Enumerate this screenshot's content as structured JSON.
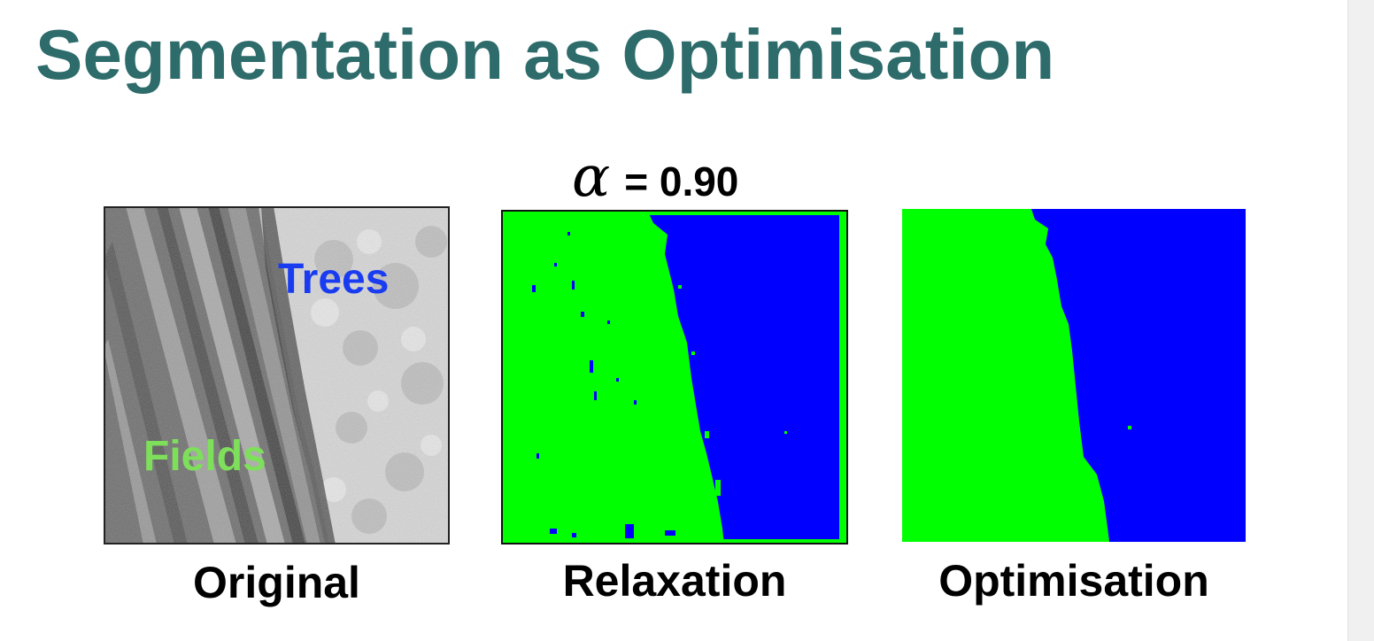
{
  "slide": {
    "title": "Segmentation as Optimisation",
    "parameter": {
      "symbol": "α",
      "value_text": "= 0.90"
    }
  },
  "panels": [
    {
      "caption": "Original",
      "labels": [
        {
          "text": "Trees",
          "color": "#1a3cf0"
        },
        {
          "text": "Fields",
          "color": "#7ee05a"
        }
      ]
    },
    {
      "caption": "Relaxation"
    },
    {
      "caption": "Optimisation"
    }
  ],
  "colors": {
    "title": "#2e6b6b",
    "fields_class": "#00ff00",
    "trees_class": "#0000ff"
  }
}
